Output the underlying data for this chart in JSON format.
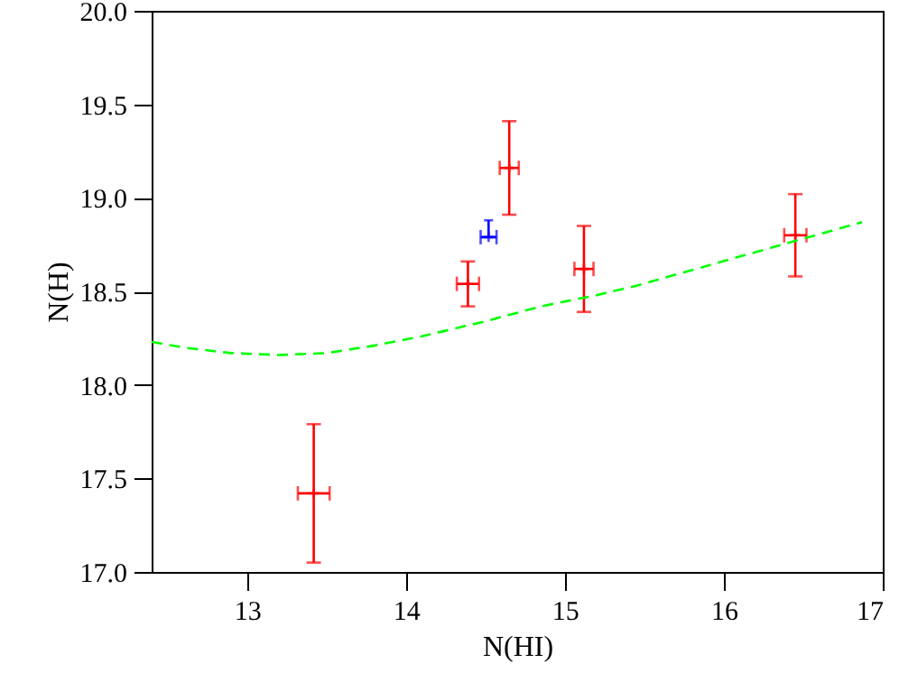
{
  "chart_data": {
    "type": "scatter",
    "xlabel": "N(HI)",
    "ylabel": "N(H)",
    "xlim": [
      12.4,
      17
    ],
    "xticks": [
      13,
      14,
      15,
      16,
      17
    ],
    "ylim": [
      17,
      20
    ],
    "yticks": [
      {
        "value": 17,
        "label": "17.0"
      },
      {
        "value": 17.5,
        "label": "17.5"
      },
      {
        "value": 18,
        "label": "18.0"
      },
      {
        "value": 18.5,
        "label": "18.5"
      },
      {
        "value": 19,
        "label": "19.0"
      },
      {
        "value": 19.5,
        "label": "19.5"
      },
      {
        "value": 20,
        "label": "20.0"
      }
    ],
    "grid": false,
    "marker": "cross",
    "series": [
      {
        "color": "#ff0000",
        "x": [
          13.42,
          14.39,
          14.65,
          15.12,
          16.45
        ],
        "values": [
          17.42,
          18.54,
          19.16,
          18.62,
          18.8
        ],
        "errors": [
          0.37,
          0.12,
          0.25,
          0.23,
          0.22
        ],
        "xerrors": [
          0.1,
          0.07,
          0.06,
          0.06,
          0.07
        ]
      },
      {
        "color": "#0000ff",
        "x": [
          14.52
        ],
        "values": [
          18.79
        ],
        "errors": [
          [
            18.79,
            18.88
          ]
        ],
        "xerrors": [
          0.05
        ]
      },
      {
        "type": "line",
        "marker": "none",
        "line_style": "dashed",
        "color": "#00ff00",
        "x": [
          12.4,
          12.6,
          12.9,
          13.2,
          13.5,
          13.8,
          14.1,
          14.5,
          14.85,
          15.2,
          15.45,
          15.95,
          16.45,
          16.87
        ],
        "values": [
          18.23,
          18.2,
          18.17,
          18.16,
          18.17,
          18.21,
          18.26,
          18.34,
          18.42,
          18.48,
          18.53,
          18.65,
          18.77,
          18.87
        ]
      }
    ]
  }
}
